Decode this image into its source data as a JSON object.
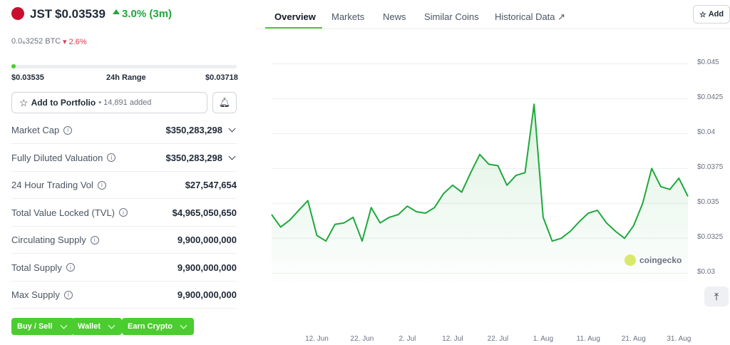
{
  "header": {
    "symbol": "JST",
    "price": "$0.03539",
    "change": "3.0% (3m)",
    "btc_price": "0.0₆3252 BTC",
    "btc_change": "2.6%"
  },
  "range": {
    "low": "$0.03535",
    "label": "24h Range",
    "high": "$0.03718"
  },
  "portfolio": {
    "button": "Add to Portfolio",
    "added": "• 14,891 added"
  },
  "stats": [
    {
      "label": "Market Cap",
      "value": "$350,283,298"
    },
    {
      "label": "Fully Diluted Valuation",
      "value": "$350,283,298"
    },
    {
      "label": "24 Hour Trading Vol",
      "value": "$27,547,654"
    },
    {
      "label": "Total Value Locked (TVL)",
      "value": "$4,965,050,650"
    },
    {
      "label": "Circulating Supply",
      "value": "9,900,000,000"
    },
    {
      "label": "Total Supply",
      "value": "9,900,000,000"
    },
    {
      "label": "Max Supply",
      "value": "9,900,000,000"
    }
  ],
  "buttons": [
    "Buy / Sell",
    "Wallet",
    "Earn Crypto"
  ],
  "tabs": [
    "Overview",
    "Markets",
    "News",
    "Similar Coins",
    "Historical Data"
  ],
  "add_button": "Add",
  "chart_data": {
    "type": "line",
    "color": "#1fa83c",
    "grid": true,
    "watermark": "coingecko",
    "categories": [
      null,
      null,
      null,
      null,
      null,
      "12. Jun",
      null,
      null,
      null,
      null,
      "22. Jun",
      null,
      null,
      null,
      null,
      "2. Jul",
      null,
      null,
      null,
      null,
      "12. Jul",
      null,
      null,
      null,
      null,
      "22. Jul",
      null,
      null,
      null,
      null,
      "1. Aug",
      null,
      null,
      null,
      null,
      "11. Aug",
      null,
      null,
      null,
      null,
      "21. Aug",
      null,
      null,
      null,
      null,
      "31. Aug",
      null
    ],
    "values": [
      0.0342,
      0.0333,
      0.0338,
      0.0345,
      0.0352,
      0.0327,
      0.0323,
      0.0335,
      0.0336,
      0.034,
      0.0323,
      0.0347,
      0.0336,
      0.034,
      0.0342,
      0.0348,
      0.0344,
      0.0343,
      0.0347,
      0.0357,
      0.0363,
      0.0358,
      0.0372,
      0.0385,
      0.0378,
      0.0377,
      0.0363,
      0.037,
      0.0372,
      0.0421,
      0.034,
      0.0323,
      0.0325,
      0.033,
      0.0337,
      0.0343,
      0.0345,
      0.0336,
      0.033,
      0.0325,
      0.0334,
      0.035,
      0.0375,
      0.0362,
      0.036,
      0.0368,
      0.0355
    ],
    "ylim": [
      0.0294,
      0.0465
    ],
    "yticks": [
      {
        "value": 0.03,
        "label": "$0.03"
      },
      {
        "value": 0.0325,
        "label": "$0.0325"
      },
      {
        "value": 0.035,
        "label": "$0.035"
      },
      {
        "value": 0.0375,
        "label": "$0.0375"
      },
      {
        "value": 0.04,
        "label": "$0.04"
      },
      {
        "value": 0.0425,
        "label": "$0.0425"
      },
      {
        "value": 0.045,
        "label": "$0.045"
      }
    ]
  }
}
